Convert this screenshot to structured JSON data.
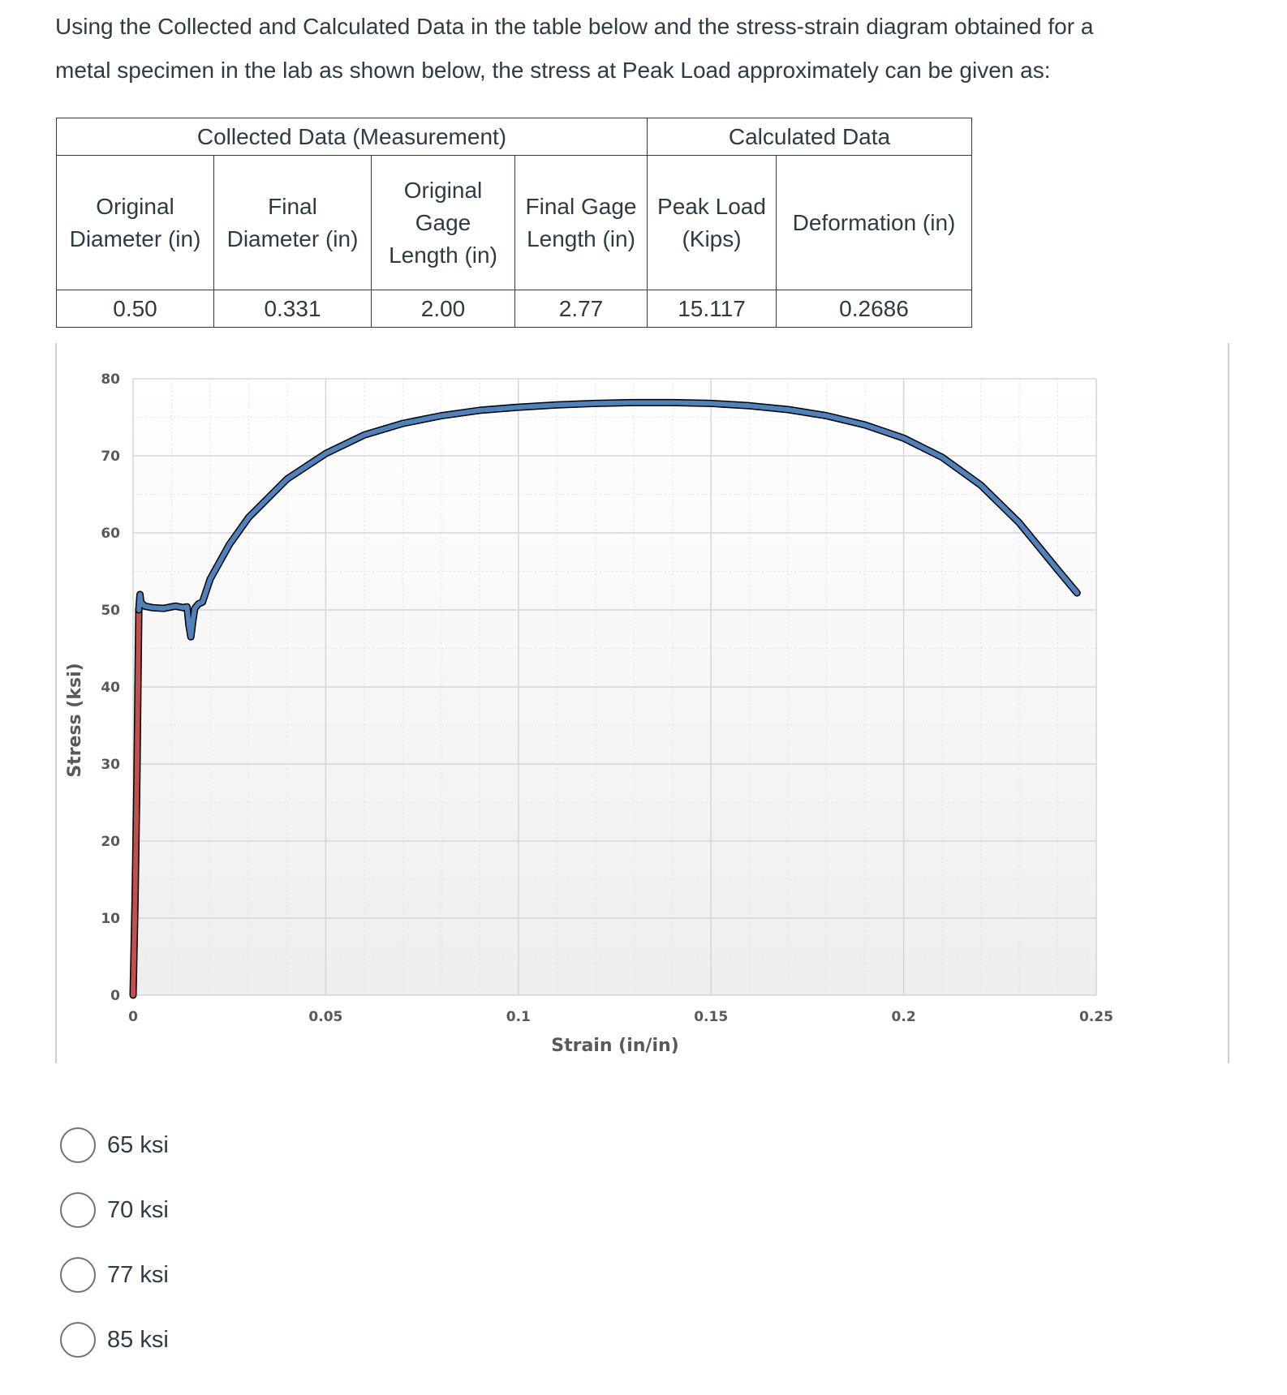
{
  "question": {
    "text_line1": "Using the Collected and Calculated Data in the table below and the stress-strain diagram obtained for a",
    "text_line2": "metal specimen in the lab as shown below, the stress at Peak Load approximately can be given as:"
  },
  "table": {
    "group_headers": [
      "Collected Data (Measurement)",
      "Calculated Data"
    ],
    "columns": [
      [
        "Original",
        "Diameter (in)"
      ],
      [
        "Final",
        "Diameter (in)"
      ],
      [
        "Original",
        "Gage",
        "Length (in)"
      ],
      [
        "Final Gage",
        "Length (in)"
      ],
      [
        "Peak Load",
        "(Kips)"
      ],
      [
        "Deformation (in)"
      ]
    ],
    "values": [
      "0.50",
      "0.331",
      "2.00",
      "2.77",
      "15.117",
      "0.2686"
    ]
  },
  "chart_data": {
    "type": "line",
    "title": "",
    "xlabel": "Strain (in/in)",
    "ylabel": "Stress (ksi)",
    "xlim": [
      0,
      0.25
    ],
    "ylim": [
      0,
      80
    ],
    "x_ticks": [
      "0",
      "0.05",
      "0.1",
      "0.15",
      "0.2",
      "0.25"
    ],
    "y_ticks": [
      "0",
      "10",
      "20",
      "30",
      "40",
      "50",
      "60",
      "70",
      "80"
    ],
    "grid": true,
    "legend": "none",
    "series": [
      {
        "color": "#c0504d",
        "x": [
          0,
          0.0005,
          0.001,
          0.0013,
          0.0015
        ],
        "y": [
          0,
          12,
          28,
          42,
          50
        ]
      },
      {
        "color": "#4f81bd",
        "x": [
          0.0015,
          0.0018,
          0.002,
          0.003,
          0.005,
          0.008,
          0.011,
          0.013,
          0.014,
          0.0145,
          0.015,
          0.0155,
          0.016,
          0.017,
          0.018,
          0.02,
          0.025,
          0.03,
          0.04,
          0.05,
          0.06,
          0.07,
          0.08,
          0.09,
          0.1,
          0.11,
          0.12,
          0.13,
          0.14,
          0.15,
          0.16,
          0.17,
          0.18,
          0.19,
          0.2,
          0.21,
          0.22,
          0.23,
          0.24,
          0.245
        ],
        "y": [
          50,
          52,
          51,
          50.5,
          50.3,
          50.2,
          50.5,
          50.3,
          50.4,
          48,
          46.5,
          48.5,
          50.2,
          50.8,
          51,
          54,
          58.5,
          62,
          67,
          70.3,
          72.7,
          74.2,
          75.2,
          75.9,
          76.3,
          76.6,
          76.8,
          76.9,
          76.9,
          76.8,
          76.5,
          76.0,
          75.2,
          74.0,
          72.3,
          69.8,
          66.2,
          61.3,
          55.2,
          52.2
        ]
      }
    ]
  },
  "answers": [
    "65 ksi",
    "70 ksi",
    "77 ksi",
    "85 ksi"
  ]
}
